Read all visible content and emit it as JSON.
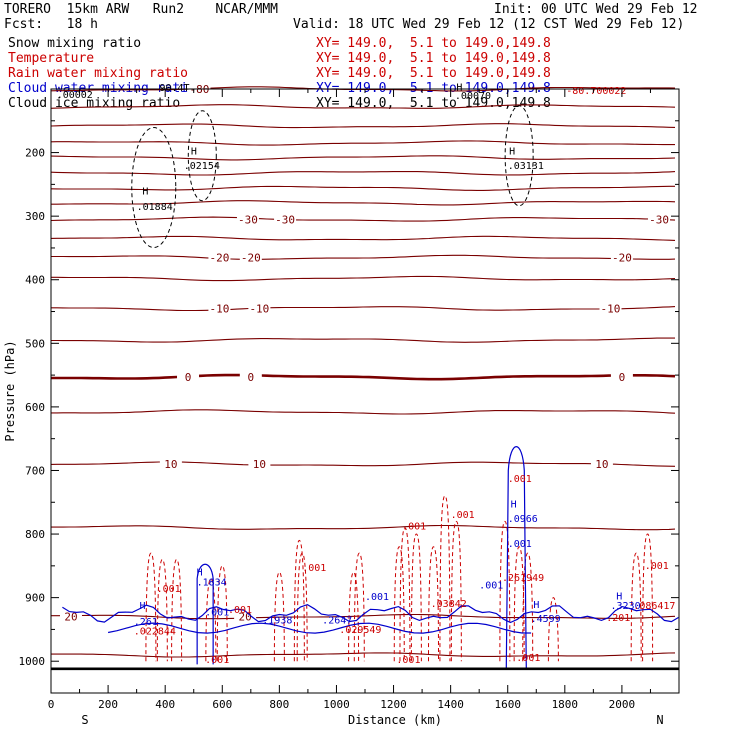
{
  "header": {
    "model": "TORERO",
    "resolution": "15km ARW",
    "run": "Run2",
    "org": "NCAR/MMM",
    "init": "Init: 00 UTC Wed 29 Feb 12",
    "fcst_label": "Fcst:",
    "fcst_value": "18 h",
    "valid": "Valid: 18 UTC Wed 29 Feb 12 (12 CST Wed 29 Feb 12)"
  },
  "legend": [
    {
      "name": "Snow mixing ratio",
      "color": "#000000",
      "xy": "XY= 149.0,  5.1 to 149.0,149.8"
    },
    {
      "name": "Temperature",
      "color": "#cc0000",
      "xy": "XY= 149.0,  5.1 to 149.0,149.8"
    },
    {
      "name": "Rain water mixing ratio",
      "color": "#cc0000",
      "xy": "XY= 149.0,  5.1 to 149.0,149.8"
    },
    {
      "name": "Cloud water mixing ratio",
      "color": "#0000cc",
      "xy": "XY= 149.0,  5.1 to 149.0,149.8"
    },
    {
      "name": "Cloud ice mixing ratio",
      "color": "#000000",
      "xy": "XY= 149.0,  5.1 to 149.0,149.8"
    }
  ],
  "chart_data": {
    "type": "contour",
    "xlabel": "Distance (km)",
    "ylabel": "Pressure (hPa)",
    "xlim": [
      0,
      2200
    ],
    "ylim": [
      1050,
      100
    ],
    "x_ticks": [
      0,
      200,
      400,
      600,
      800,
      1000,
      1200,
      1400,
      1600,
      1800,
      2000
    ],
    "y_ticks": [
      200,
      300,
      400,
      500,
      600,
      700,
      800,
      900,
      1000
    ],
    "x_end_labels": {
      "left": "S",
      "right": "N"
    },
    "temperature_contours": [
      {
        "level": -80,
        "pressure": 100,
        "labels": [
          {
            "x": 520,
            "text": "-80"
          }
        ]
      },
      {
        "level": -70,
        "pressure": 128,
        "labels": []
      },
      {
        "level": -65,
        "pressure": 158,
        "labels": []
      },
      {
        "level": -60,
        "pressure": 185,
        "labels": []
      },
      {
        "level": -55,
        "pressure": 208,
        "labels": []
      },
      {
        "level": -50,
        "pressure": 232,
        "labels": []
      },
      {
        "level": -45,
        "pressure": 256,
        "labels": []
      },
      {
        "level": -40,
        "pressure": 279,
        "labels": []
      },
      {
        "level": -30,
        "pressure": 305,
        "labels": [
          {
            "x": 690,
            "text": "-30"
          },
          {
            "x": 820,
            "text": "-30"
          },
          {
            "x": 2130,
            "text": "-30"
          }
        ]
      },
      {
        "level": -25,
        "pressure": 335,
        "labels": []
      },
      {
        "level": -20,
        "pressure": 365,
        "labels": [
          {
            "x": 590,
            "text": "-20"
          },
          {
            "x": 700,
            "text": "-20"
          },
          {
            "x": 2000,
            "text": "-20"
          }
        ]
      },
      {
        "level": -15,
        "pressure": 398,
        "labels": []
      },
      {
        "level": -10,
        "pressure": 445,
        "labels": [
          {
            "x": 590,
            "text": "-10"
          },
          {
            "x": 730,
            "text": "-10"
          },
          {
            "x": 1960,
            "text": "-10"
          }
        ]
      },
      {
        "level": -5,
        "pressure": 495,
        "labels": []
      },
      {
        "level": 0,
        "pressure": 553,
        "heavy": true,
        "labels": [
          {
            "x": 480,
            "text": "0"
          },
          {
            "x": 700,
            "text": "0"
          },
          {
            "x": 2000,
            "text": "0"
          }
        ]
      },
      {
        "level": 5,
        "pressure": 608,
        "labels": []
      },
      {
        "level": 10,
        "pressure": 690,
        "labels": [
          {
            "x": 420,
            "text": "10"
          },
          {
            "x": 730,
            "text": "10"
          },
          {
            "x": 1930,
            "text": "10"
          }
        ]
      },
      {
        "level": 15,
        "pressure": 790,
        "labels": []
      },
      {
        "level": 20,
        "pressure": 930,
        "labels": [
          {
            "x": 70,
            "text": "20"
          },
          {
            "x": 680,
            "text": "20"
          }
        ]
      },
      {
        "level": 25,
        "pressure": 990,
        "labels": []
      }
    ],
    "annotations": [
      {
        "text": ".00002",
        "x": 20,
        "p": 114,
        "color": "#000000"
      },
      {
        "text": "90.4T",
        "x": 380,
        "p": 103,
        "color": "#000000"
      },
      {
        "text": "H",
        "x": 490,
        "p": 203,
        "color": "#000000"
      },
      {
        "text": ".02154",
        "x": 465,
        "p": 226,
        "color": "#000000"
      },
      {
        "text": "H",
        "x": 320,
        "p": 266,
        "color": "#000000"
      },
      {
        "text": ".01884",
        "x": 300,
        "p": 290,
        "color": "#000000"
      },
      {
        "text": "H",
        "x": 1605,
        "p": 203,
        "color": "#000000"
      },
      {
        "text": ".03131",
        "x": 1600,
        "p": 226,
        "color": "#000000"
      },
      {
        "text": ".00070",
        "x": 1415,
        "p": 116,
        "color": "#000000"
      },
      {
        "text": "H",
        "x": 1420,
        "p": 102,
        "color": "#000000"
      },
      {
        "text": "-80.700022",
        "x": 1805,
        "p": 108,
        "color": "#cc0000"
      },
      {
        "text": ".001",
        "x": 1600,
        "p": 718,
        "color": "#cc0000"
      },
      {
        "text": "H",
        "x": 1610,
        "p": 758,
        "color": "#0000cc"
      },
      {
        "text": ".0966",
        "x": 1600,
        "p": 781,
        "color": "#0000cc"
      },
      {
        "text": ".001",
        "x": 1600,
        "p": 820,
        "color": "#0000cc"
      },
      {
        "text": ".001",
        "x": 1230,
        "p": 793,
        "color": "#cc0000"
      },
      {
        "text": ".001",
        "x": 1400,
        "p": 775,
        "color": "#cc0000"
      },
      {
        "text": ".001",
        "x": 880,
        "p": 858,
        "color": "#cc0000"
      },
      {
        "text": ".001",
        "x": 370,
        "p": 891,
        "color": "#cc0000"
      },
      {
        "text": "H",
        "x": 510,
        "p": 865,
        "color": "#0000cc"
      },
      {
        "text": ".1834",
        "x": 510,
        "p": 881,
        "color": "#0000cc"
      },
      {
        "text": "H",
        "x": 310,
        "p": 918,
        "color": "#0000cc"
      },
      {
        "text": ".261",
        "x": 290,
        "p": 943,
        "color": "#0000cc"
      },
      {
        "text": ".022844",
        "x": 290,
        "p": 958,
        "color": "#cc0000"
      },
      {
        "text": ".001",
        "x": 540,
        "p": 928,
        "color": "#0000cc"
      },
      {
        "text": ".001",
        "x": 620,
        "p": 924,
        "color": "#cc0000"
      },
      {
        "text": ".1938",
        "x": 740,
        "p": 941,
        "color": "#0000cc"
      },
      {
        "text": ".2647",
        "x": 950,
        "p": 941,
        "color": "#0000cc"
      },
      {
        "text": ".029549",
        "x": 1010,
        "p": 956,
        "color": "#cc0000"
      },
      {
        "text": ".001",
        "x": 1100,
        "p": 904,
        "color": "#0000cc"
      },
      {
        "text": ".03842",
        "x": 1330,
        "p": 915,
        "color": "#cc0000"
      },
      {
        "text": ".001",
        "x": 1500,
        "p": 886,
        "color": "#0000cc"
      },
      {
        "text": ".261949",
        "x": 1580,
        "p": 874,
        "color": "#cc0000"
      },
      {
        "text": "H",
        "x": 1690,
        "p": 916,
        "color": "#0000cc"
      },
      {
        "text": ".4599",
        "x": 1680,
        "p": 938,
        "color": "#0000cc"
      },
      {
        "text": "H",
        "x": 1980,
        "p": 903,
        "color": "#0000cc"
      },
      {
        "text": ".3230",
        "x": 1960,
        "p": 918,
        "color": "#0000cc"
      },
      {
        "text": ".086417",
        "x": 2040,
        "p": 918,
        "color": "#cc0000"
      },
      {
        "text": ".001",
        "x": 2080,
        "p": 855,
        "color": "#cc0000"
      },
      {
        "text": ".201",
        "x": 1945,
        "p": 937,
        "color": "#cc0000"
      },
      {
        "text": ".001",
        "x": 540,
        "p": 1003,
        "color": "#cc0000"
      },
      {
        "text": ".001",
        "x": 1210,
        "p": 1003,
        "color": "#cc0000"
      },
      {
        "text": ".001",
        "x": 1630,
        "p": 1000,
        "color": "#cc0000"
      }
    ]
  }
}
